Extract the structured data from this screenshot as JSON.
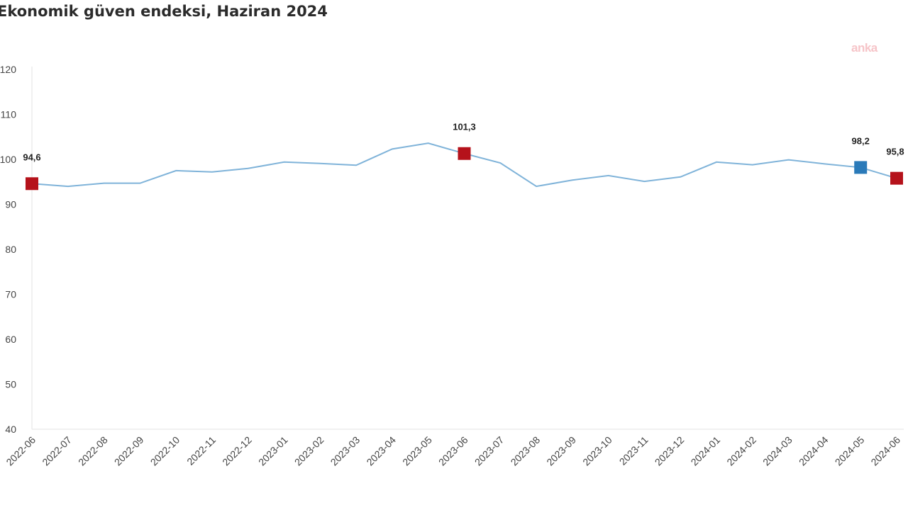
{
  "chart_data": {
    "type": "line",
    "title": "Ekonomik güven endeksi, Haziran 2024",
    "watermark": "anka",
    "xlabel": "",
    "ylabel": "",
    "ylim": [
      40,
      120
    ],
    "yticks": [
      40,
      50,
      60,
      70,
      80,
      90,
      100,
      110,
      120
    ],
    "yticklabels": [
      "40",
      "50",
      "60",
      "70",
      "80",
      "90",
      "100",
      "110",
      "120"
    ],
    "grid": false,
    "x": [
      "2022-06",
      "2022-07",
      "2022-08",
      "2022-09",
      "2022-10",
      "2022-11",
      "2022-12",
      "2023-01",
      "2023-02",
      "2023-03",
      "2023-04",
      "2023-05",
      "2023-06",
      "2023-07",
      "2023-08",
      "2023-09",
      "2023-10",
      "2023-11",
      "2023-12",
      "2024-01",
      "2024-02",
      "2024-03",
      "2024-04",
      "2024-05",
      "2024-06"
    ],
    "series": [
      {
        "name": "Ekonomik güven endeksi",
        "color": "#7fb3d9",
        "values": [
          94.6,
          94.0,
          94.7,
          94.7,
          97.5,
          97.2,
          98.0,
          99.4,
          99.1,
          98.7,
          102.3,
          103.6,
          101.3,
          99.2,
          94.0,
          95.4,
          96.4,
          95.1,
          96.1,
          99.4,
          98.8,
          99.9,
          99.0,
          98.2,
          95.8
        ]
      }
    ],
    "highlights": [
      {
        "index": 0,
        "label": "94,6",
        "color": "#b5121b"
      },
      {
        "index": 12,
        "label": "101,3",
        "color": "#b5121b"
      },
      {
        "index": 23,
        "label": "98,2",
        "color": "#2a7ab9"
      },
      {
        "index": 24,
        "label": "95,8",
        "color": "#b5121b"
      }
    ]
  }
}
